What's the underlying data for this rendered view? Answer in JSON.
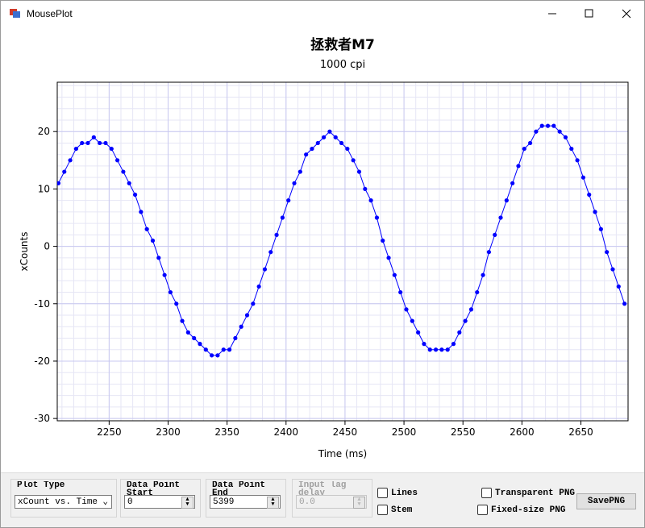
{
  "window": {
    "title": "MousePlot"
  },
  "controls": {
    "plot_type": {
      "label": "Plot Type",
      "value": "xCount vs. Time"
    },
    "start": {
      "label": "Data Point Start",
      "value": "0"
    },
    "end": {
      "label": "Data Point End",
      "value": "5399"
    },
    "lag": {
      "label": "Input lag delay",
      "value": "0.0"
    },
    "lines": "Lines",
    "stem": "Stem",
    "transparent": "Transparent PNG",
    "fixed": "Fixed-size PNG",
    "save": "SavePNG"
  },
  "chart_data": {
    "type": "scatter",
    "title": "拯救者M7",
    "subtitle": "1000 cpi",
    "xlabel": "Time (ms)",
    "ylabel": "xCounts",
    "color": "#0000ff",
    "line": true,
    "grid": true,
    "xlim": [
      2206,
      2690
    ],
    "ylim": [
      -30.4,
      28.6
    ],
    "xticks": [
      2250,
      2300,
      2350,
      2400,
      2450,
      2500,
      2550,
      2600,
      2650
    ],
    "yticks": [
      -30,
      -20,
      -10,
      0,
      10,
      20
    ],
    "x": [
      2207,
      2212,
      2217,
      2222,
      2227,
      2232,
      2237,
      2242,
      2247,
      2252,
      2257,
      2262,
      2267,
      2272,
      2277,
      2282,
      2287,
      2292,
      2297,
      2302,
      2307,
      2312,
      2317,
      2322,
      2327,
      2332,
      2337,
      2342,
      2347,
      2352,
      2357,
      2362,
      2367,
      2372,
      2377,
      2382,
      2387,
      2392,
      2397,
      2402,
      2407,
      2412,
      2417,
      2422,
      2427,
      2432,
      2437,
      2442,
      2447,
      2452,
      2457,
      2462,
      2467,
      2472,
      2477,
      2482,
      2487,
      2492,
      2497,
      2502,
      2507,
      2512,
      2517,
      2522,
      2527,
      2532,
      2537,
      2542,
      2547,
      2552,
      2557,
      2562,
      2567,
      2572,
      2577,
      2582,
      2587,
      2592,
      2597,
      2602,
      2607,
      2612,
      2617,
      2622,
      2627,
      2632,
      2637,
      2642,
      2647,
      2652,
      2657,
      2662,
      2667,
      2672,
      2677,
      2682,
      2687
    ],
    "values": [
      11,
      13,
      15,
      17,
      18,
      18,
      19,
      18,
      18,
      17,
      15,
      13,
      11,
      9,
      6,
      3,
      1,
      -2,
      -5,
      -8,
      -10,
      -13,
      -15,
      -16,
      -17,
      -18,
      -19,
      -19,
      -18,
      -18,
      -16,
      -14,
      -12,
      -10,
      -7,
      -4,
      -1,
      2,
      5,
      8,
      11,
      13,
      16,
      17,
      18,
      19,
      20,
      19,
      18,
      17,
      15,
      13,
      10,
      8,
      5,
      1,
      -2,
      -5,
      -8,
      -11,
      -13,
      -15,
      -17,
      -18,
      -18,
      -18,
      -18,
      -17,
      -15,
      -13,
      -11,
      -8,
      -5,
      -1,
      2,
      5,
      8,
      11,
      14,
      17,
      18,
      20,
      21,
      21,
      21,
      20,
      19,
      17,
      15,
      12,
      9,
      6,
      3,
      -1,
      -4,
      -7,
      -10
    ]
  }
}
